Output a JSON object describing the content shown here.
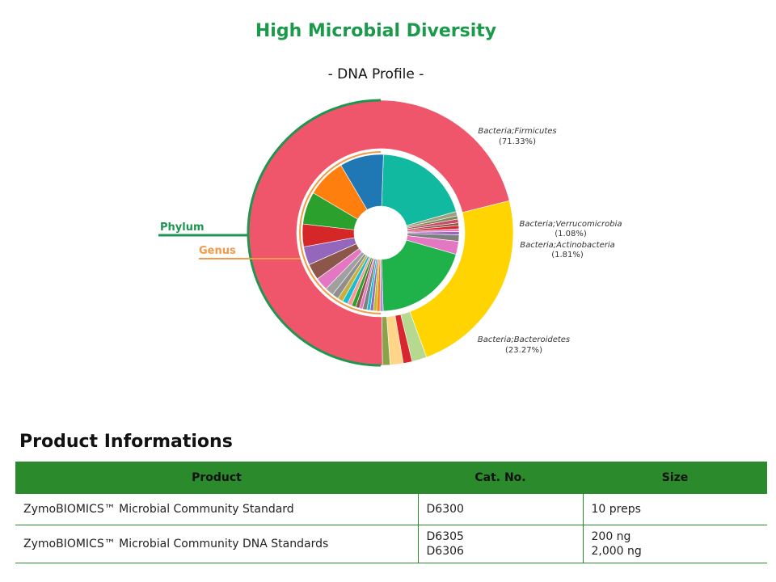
{
  "header": {
    "title": "High Microbial Diversity",
    "subtitle": "- DNA Profile -"
  },
  "chart_data": {
    "type": "pie",
    "title": "High Microbial Diversity",
    "subtitle": "- DNA Profile -",
    "rings": [
      {
        "name": "Phylum",
        "slices": [
          {
            "label": "Bacteria;Firmicutes",
            "value": 71.33,
            "color": "#ef566c"
          },
          {
            "label": "Bacteria;Bacteroidetes",
            "value": 23.27,
            "color": "#ffd400"
          },
          {
            "label": "Bacteria;Actinobacteria",
            "value": 1.81,
            "color": "#b5d98f"
          },
          {
            "label": "Bacteria;Verrucomicrobia",
            "value": 1.08,
            "color": "#d9262e"
          },
          {
            "label": "",
            "value": 1.6,
            "color": "#ffd58a"
          },
          {
            "label": "",
            "value": 0.91,
            "color": "#8aa34b"
          }
        ]
      },
      {
        "name": "Genus",
        "slices": [
          {
            "label": "",
            "value": 18.0,
            "color": "#10b9a0"
          },
          {
            "label": "",
            "value": 0.8,
            "color": "#a0a080"
          },
          {
            "label": "",
            "value": 0.6,
            "color": "#7d8b5a"
          },
          {
            "label": "",
            "value": 0.7,
            "color": "#c94a6b"
          },
          {
            "label": "",
            "value": 0.5,
            "color": "#8c564b"
          },
          {
            "label": "",
            "value": 0.6,
            "color": "#d62728"
          },
          {
            "label": "",
            "value": 0.5,
            "color": "#e377c2"
          },
          {
            "label": "",
            "value": 0.6,
            "color": "#9467bd"
          },
          {
            "label": "",
            "value": 1.2,
            "color": "#7f7f7f"
          },
          {
            "label": "",
            "value": 2.4,
            "color": "#e377c2"
          },
          {
            "label": "",
            "value": 18.0,
            "color": "#1fb24a"
          },
          {
            "label": "",
            "value": 0.6,
            "color": "#b08de0"
          },
          {
            "label": "",
            "value": 0.6,
            "color": "#ff7f0e"
          },
          {
            "label": "",
            "value": 0.6,
            "color": "#bcbd22"
          },
          {
            "label": "",
            "value": 0.6,
            "color": "#9467bd"
          },
          {
            "label": "",
            "value": 0.6,
            "color": "#17becf"
          },
          {
            "label": "",
            "value": 0.8,
            "color": "#7f7f7f"
          },
          {
            "label": "",
            "value": 0.6,
            "color": "#e377c2"
          },
          {
            "label": "",
            "value": 0.7,
            "color": "#8c564b"
          },
          {
            "label": "",
            "value": 0.8,
            "color": "#2ca02c"
          },
          {
            "label": "",
            "value": 0.8,
            "color": "#ff9896"
          },
          {
            "label": "",
            "value": 1.0,
            "color": "#17becf"
          },
          {
            "label": "",
            "value": 1.0,
            "color": "#c7b040"
          },
          {
            "label": "",
            "value": 1.2,
            "color": "#8f8f8f"
          },
          {
            "label": "",
            "value": 1.6,
            "color": "#a0a0a0"
          },
          {
            "label": "",
            "value": 2.4,
            "color": "#e377c2"
          },
          {
            "label": "",
            "value": 3.0,
            "color": "#8c564b"
          },
          {
            "label": "",
            "value": 3.4,
            "color": "#9467bd"
          },
          {
            "label": "",
            "value": 4.2,
            "color": "#d62728"
          },
          {
            "label": "",
            "value": 6.0,
            "color": "#2ca02c"
          },
          {
            "label": "",
            "value": 7.2,
            "color": "#ff7f0e"
          },
          {
            "label": "",
            "value": 8.1,
            "color": "#1f77b4"
          }
        ]
      }
    ],
    "labels": {
      "phylum_bracket": "Phylum",
      "genus_bracket": "Genus"
    },
    "annotations": [
      {
        "name": "Bacteria;Firmicutes",
        "pct": "(71.33%)"
      },
      {
        "name": "Bacteria;Verrucomicrobia",
        "pct": "(1.08%)"
      },
      {
        "name": "Bacteria;Actinobacteria",
        "pct": "(1.81%)"
      },
      {
        "name": "Bacteria;Bacteroidetes",
        "pct": "(23.27%)"
      }
    ],
    "colors": {
      "phylum_bracket": "#1e9650",
      "genus_bracket": "#f29a4a"
    }
  },
  "product_section": {
    "title": "Product Informations",
    "columns": [
      "Product",
      "Cat. No.",
      "Size"
    ],
    "rows": [
      {
        "product": "ZymoBIOMICS™ Microbial Community Standard",
        "cat": [
          "D6300"
        ],
        "size": [
          "10 preps"
        ]
      },
      {
        "product": "ZymoBIOMICS™ Microbial Community DNA Standards",
        "cat": [
          "D6305",
          "D6306"
        ],
        "size": [
          "200 ng",
          "2,000 ng"
        ]
      }
    ]
  },
  "theme": {
    "title_color": "#1a9a4a",
    "table_header_bg": "#2b8a2b"
  }
}
